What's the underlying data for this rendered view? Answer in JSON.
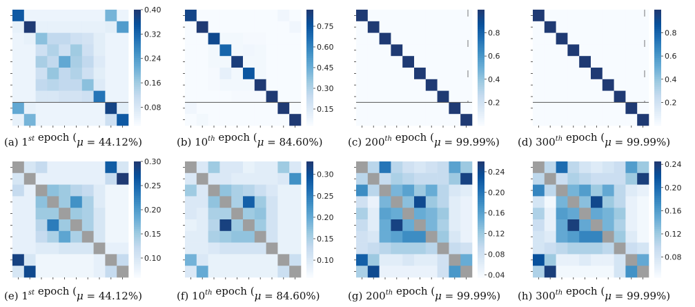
{
  "colors": {
    "low": "#f7fbff",
    "high": "#1f3a73",
    "diagonal_masked": "#9e9e9e",
    "rule": "#555555"
  },
  "panels": [
    {
      "id": "a",
      "caption": {
        "prefix": "(a) ",
        "ord": "1",
        "sup": "st",
        "middle": " epoch (",
        "mu": "μ",
        "value": " = 44.12%)"
      },
      "colorbar": {
        "min": 0.02,
        "max": 0.4,
        "ticks": [
          "0.40",
          "0.32",
          "0.24",
          "0.16",
          "0.08"
        ]
      },
      "diagonal_masked": false,
      "rule_row": 8,
      "matrix": [
        [
          0.34,
          0.04,
          0.04,
          0.04,
          0.04,
          0.04,
          0.04,
          0.04,
          0.2,
          0.04
        ],
        [
          0.05,
          0.4,
          0.05,
          0.05,
          0.05,
          0.05,
          0.05,
          0.05,
          0.06,
          0.24
        ],
        [
          0.04,
          0.05,
          0.18,
          0.12,
          0.12,
          0.1,
          0.09,
          0.06,
          0.04,
          0.04
        ],
        [
          0.04,
          0.04,
          0.1,
          0.14,
          0.1,
          0.16,
          0.1,
          0.06,
          0.04,
          0.04
        ],
        [
          0.04,
          0.04,
          0.15,
          0.12,
          0.22,
          0.15,
          0.12,
          0.07,
          0.04,
          0.04
        ],
        [
          0.04,
          0.04,
          0.1,
          0.17,
          0.12,
          0.14,
          0.1,
          0.06,
          0.04,
          0.04
        ],
        [
          0.04,
          0.04,
          0.12,
          0.13,
          0.12,
          0.12,
          0.18,
          0.07,
          0.04,
          0.04
        ],
        [
          0.04,
          0.04,
          0.08,
          0.08,
          0.09,
          0.09,
          0.1,
          0.3,
          0.04,
          0.04
        ],
        [
          0.22,
          0.05,
          0.04,
          0.04,
          0.04,
          0.04,
          0.04,
          0.04,
          0.38,
          0.06
        ],
        [
          0.05,
          0.2,
          0.04,
          0.04,
          0.04,
          0.04,
          0.04,
          0.04,
          0.1,
          0.34
        ]
      ]
    },
    {
      "id": "b",
      "caption": {
        "prefix": "(b) ",
        "ord": "10",
        "sup": "th",
        "middle": " epoch (",
        "mu": "μ",
        "value": " = 84.60%)"
      },
      "colorbar": {
        "min": 0.03,
        "max": 0.87,
        "ticks": [
          "0.75",
          "0.60",
          "0.45",
          "0.30",
          "0.15"
        ]
      },
      "diagonal_masked": false,
      "rule_row": 8,
      "matrix": [
        [
          0.82,
          0.03,
          0.03,
          0.03,
          0.03,
          0.03,
          0.03,
          0.03,
          0.06,
          0.03
        ],
        [
          0.03,
          0.87,
          0.03,
          0.03,
          0.03,
          0.03,
          0.03,
          0.03,
          0.03,
          0.06
        ],
        [
          0.03,
          0.03,
          0.8,
          0.05,
          0.05,
          0.04,
          0.04,
          0.03,
          0.03,
          0.03
        ],
        [
          0.03,
          0.03,
          0.05,
          0.7,
          0.05,
          0.06,
          0.05,
          0.03,
          0.03,
          0.03
        ],
        [
          0.03,
          0.03,
          0.05,
          0.05,
          0.85,
          0.05,
          0.05,
          0.03,
          0.03,
          0.03
        ],
        [
          0.03,
          0.03,
          0.04,
          0.1,
          0.05,
          0.75,
          0.05,
          0.03,
          0.03,
          0.03
        ],
        [
          0.03,
          0.03,
          0.04,
          0.05,
          0.05,
          0.05,
          0.87,
          0.03,
          0.03,
          0.03
        ],
        [
          0.03,
          0.03,
          0.03,
          0.03,
          0.04,
          0.04,
          0.04,
          0.87,
          0.03,
          0.03
        ],
        [
          0.06,
          0.03,
          0.03,
          0.03,
          0.03,
          0.03,
          0.03,
          0.03,
          0.87,
          0.03
        ],
        [
          0.03,
          0.05,
          0.03,
          0.03,
          0.03,
          0.03,
          0.03,
          0.03,
          0.03,
          0.87
        ]
      ]
    },
    {
      "id": "c",
      "caption": {
        "prefix": "(c) ",
        "ord": "200",
        "sup": "th",
        "middle": " epoch (",
        "mu": "μ",
        "value": " = 99.99%)"
      },
      "colorbar": {
        "min": 0.0,
        "max": 1.0,
        "ticks": [
          "0.8",
          "0.6",
          "0.4",
          "0.2"
        ]
      },
      "diagonal_masked": false,
      "rule_row": 8,
      "matrix": [
        [
          1,
          0,
          0,
          0,
          0,
          0,
          0,
          0,
          0,
          0
        ],
        [
          0,
          1,
          0,
          0,
          0,
          0,
          0,
          0,
          0,
          0
        ],
        [
          0,
          0,
          1,
          0,
          0,
          0,
          0,
          0,
          0,
          0
        ],
        [
          0,
          0,
          0,
          1,
          0,
          0,
          0,
          0,
          0,
          0
        ],
        [
          0,
          0,
          0,
          0,
          1,
          0,
          0,
          0,
          0,
          0
        ],
        [
          0,
          0,
          0,
          0,
          0,
          1,
          0,
          0,
          0,
          0
        ],
        [
          0,
          0,
          0,
          0,
          0,
          0,
          1,
          0,
          0,
          0
        ],
        [
          0,
          0,
          0,
          0,
          0,
          0,
          0,
          1,
          0,
          0
        ],
        [
          0,
          0,
          0,
          0,
          0,
          0,
          0,
          0,
          1,
          0
        ],
        [
          0,
          0,
          0,
          0,
          0,
          0,
          0,
          0,
          0,
          1
        ]
      ]
    },
    {
      "id": "d",
      "caption": {
        "prefix": "(d) ",
        "ord": "300",
        "sup": "th",
        "middle": " epoch (",
        "mu": "μ",
        "value": " = 99.99%)"
      },
      "colorbar": {
        "min": 0.0,
        "max": 1.0,
        "ticks": [
          "0.8",
          "0.6",
          "0.4",
          "0.2"
        ]
      },
      "diagonal_masked": false,
      "rule_row": 8,
      "matrix": [
        [
          1,
          0,
          0,
          0,
          0,
          0,
          0,
          0,
          0,
          0
        ],
        [
          0,
          1,
          0,
          0,
          0,
          0,
          0,
          0,
          0,
          0
        ],
        [
          0,
          0,
          1,
          0,
          0,
          0,
          0,
          0,
          0,
          0
        ],
        [
          0,
          0,
          0,
          1,
          0,
          0,
          0,
          0,
          0,
          0
        ],
        [
          0,
          0,
          0,
          0,
          1,
          0,
          0,
          0,
          0,
          0
        ],
        [
          0,
          0,
          0,
          0,
          0,
          1,
          0,
          0,
          0,
          0
        ],
        [
          0,
          0,
          0,
          0,
          0,
          0,
          1,
          0,
          0,
          0
        ],
        [
          0,
          0,
          0,
          0,
          0,
          0,
          0,
          1,
          0,
          0
        ],
        [
          0,
          0,
          0,
          0,
          0,
          0,
          0,
          0,
          1,
          0
        ],
        [
          0,
          0,
          0,
          0,
          0,
          0,
          0,
          0,
          0,
          1
        ]
      ]
    },
    {
      "id": "e",
      "caption": {
        "prefix": "(e) ",
        "ord": "1",
        "sup": "st",
        "middle": " epoch (",
        "mu": "μ",
        "value": " = 44.12%)"
      },
      "colorbar": {
        "min": 0.06,
        "max": 0.3,
        "ticks": [
          "0.30",
          "0.25",
          "0.20",
          "0.15",
          "0.10"
        ]
      },
      "diagonal_masked": true,
      "rule_row": null,
      "matrix": [
        [
          0,
          0.1,
          0.12,
          0.08,
          0.08,
          0.08,
          0.08,
          0.08,
          0.26,
          0.1
        ],
        [
          0.1,
          0,
          0.08,
          0.08,
          0.08,
          0.08,
          0.08,
          0.08,
          0.12,
          0.3
        ],
        [
          0.12,
          0.08,
          0,
          0.16,
          0.15,
          0.13,
          0.12,
          0.09,
          0.07,
          0.07
        ],
        [
          0.08,
          0.08,
          0.16,
          0,
          0.15,
          0.21,
          0.14,
          0.09,
          0.07,
          0.07
        ],
        [
          0.08,
          0.08,
          0.15,
          0.15,
          0,
          0.15,
          0.14,
          0.1,
          0.07,
          0.07
        ],
        [
          0.08,
          0.08,
          0.13,
          0.23,
          0.15,
          0,
          0.14,
          0.1,
          0.07,
          0.07
        ],
        [
          0.08,
          0.08,
          0.12,
          0.14,
          0.19,
          0.14,
          0,
          0.1,
          0.07,
          0.07
        ],
        [
          0.08,
          0.08,
          0.09,
          0.09,
          0.1,
          0.1,
          0.1,
          0,
          0.08,
          0.08
        ],
        [
          0.29,
          0.1,
          0.07,
          0.07,
          0.07,
          0.07,
          0.07,
          0.08,
          0,
          0.12
        ],
        [
          0.1,
          0.28,
          0.07,
          0.07,
          0.07,
          0.07,
          0.07,
          0.08,
          0.12,
          0
        ]
      ]
    },
    {
      "id": "f",
      "caption": {
        "prefix": "(f) ",
        "ord": "10",
        "sup": "th",
        "middle": " epoch (",
        "mu": "μ",
        "value": " = 84.60%)"
      },
      "colorbar": {
        "min": 0.06,
        "max": 0.33,
        "ticks": [
          "0.30",
          "0.25",
          "0.20",
          "0.15",
          "0.10"
        ]
      },
      "diagonal_masked": true,
      "rule_row": null,
      "matrix": [
        [
          0,
          0.1,
          0.16,
          0.1,
          0.1,
          0.08,
          0.09,
          0.09,
          0.16,
          0.1
        ],
        [
          0.1,
          0,
          0.1,
          0.1,
          0.09,
          0.09,
          0.09,
          0.09,
          0.1,
          0.23
        ],
        [
          0.16,
          0.1,
          0,
          0.17,
          0.15,
          0.14,
          0.12,
          0.1,
          0.08,
          0.08
        ],
        [
          0.1,
          0.1,
          0.17,
          0,
          0.15,
          0.28,
          0.16,
          0.11,
          0.08,
          0.08
        ],
        [
          0.1,
          0.09,
          0.15,
          0.15,
          0,
          0.16,
          0.17,
          0.11,
          0.08,
          0.08
        ],
        [
          0.08,
          0.09,
          0.14,
          0.32,
          0.16,
          0,
          0.16,
          0.11,
          0.08,
          0.08
        ],
        [
          0.09,
          0.09,
          0.15,
          0.16,
          0.17,
          0.17,
          0,
          0.11,
          0.08,
          0.08
        ],
        [
          0.09,
          0.09,
          0.1,
          0.11,
          0.11,
          0.11,
          0.11,
          0,
          0.08,
          0.08
        ],
        [
          0.19,
          0.1,
          0.08,
          0.08,
          0.08,
          0.08,
          0.08,
          0.08,
          0,
          0.12
        ],
        [
          0.1,
          0.2,
          0.08,
          0.08,
          0.08,
          0.08,
          0.08,
          0.08,
          0.12,
          0
        ]
      ]
    },
    {
      "id": "g",
      "caption": {
        "prefix": "(g) ",
        "ord": "200",
        "sup": "th",
        "middle": " epoch (",
        "mu": "μ",
        "value": " = 99.99%)"
      },
      "colorbar": {
        "min": 0.035,
        "max": 0.26,
        "ticks": [
          "0.24",
          "0.20",
          "0.16",
          "0.12",
          "0.08",
          "0.04"
        ]
      },
      "diagonal_masked": true,
      "rule_row": null,
      "matrix": [
        [
          0,
          0.1,
          0.2,
          0.1,
          0.08,
          0.07,
          0.08,
          0.09,
          0.16,
          0.12
        ],
        [
          0.1,
          0,
          0.09,
          0.11,
          0.1,
          0.09,
          0.09,
          0.09,
          0.12,
          0.25
        ],
        [
          0.18,
          0.1,
          0,
          0.14,
          0.16,
          0.12,
          0.15,
          0.1,
          0.07,
          0.06
        ],
        [
          0.08,
          0.05,
          0.14,
          0,
          0.13,
          0.24,
          0.12,
          0.1,
          0.06,
          0.05
        ],
        [
          0.11,
          0.06,
          0.16,
          0.15,
          0,
          0.15,
          0.14,
          0.12,
          0.06,
          0.05
        ],
        [
          0.09,
          0.06,
          0.15,
          0.25,
          0.15,
          0,
          0.14,
          0.11,
          0.06,
          0.05
        ],
        [
          0.08,
          0.07,
          0.15,
          0.16,
          0.18,
          0.18,
          0,
          0.12,
          0.07,
          0.05
        ],
        [
          0.08,
          0.09,
          0.1,
          0.11,
          0.11,
          0.11,
          0.1,
          0,
          0.09,
          0.08
        ],
        [
          0.22,
          0.12,
          0.06,
          0.06,
          0.07,
          0.06,
          0.06,
          0.08,
          0,
          0.15
        ],
        [
          0.11,
          0.24,
          0.05,
          0.05,
          0.05,
          0.05,
          0.05,
          0.08,
          0.17,
          0
        ]
      ]
    },
    {
      "id": "h",
      "caption": {
        "prefix": "(h) ",
        "ord": "300",
        "sup": "th",
        "middle": " epoch (",
        "mu": "μ",
        "value": " = 99.99%)"
      },
      "colorbar": {
        "min": 0.045,
        "max": 0.245,
        "ticks": [
          "0.24",
          "0.20",
          "0.16",
          "0.12",
          "0.08"
        ]
      },
      "diagonal_masked": true,
      "rule_row": null,
      "matrix": [
        [
          0,
          0.1,
          0.2,
          0.1,
          0.08,
          0.07,
          0.08,
          0.09,
          0.16,
          0.12
        ],
        [
          0.1,
          0,
          0.09,
          0.11,
          0.1,
          0.09,
          0.09,
          0.09,
          0.12,
          0.24
        ],
        [
          0.18,
          0.1,
          0,
          0.14,
          0.16,
          0.12,
          0.15,
          0.1,
          0.07,
          0.06
        ],
        [
          0.08,
          0.05,
          0.14,
          0,
          0.13,
          0.23,
          0.12,
          0.1,
          0.06,
          0.05
        ],
        [
          0.11,
          0.06,
          0.16,
          0.15,
          0,
          0.15,
          0.14,
          0.12,
          0.06,
          0.05
        ],
        [
          0.09,
          0.06,
          0.15,
          0.24,
          0.15,
          0,
          0.14,
          0.11,
          0.06,
          0.05
        ],
        [
          0.08,
          0.07,
          0.15,
          0.16,
          0.18,
          0.18,
          0,
          0.12,
          0.07,
          0.05
        ],
        [
          0.08,
          0.09,
          0.1,
          0.11,
          0.11,
          0.11,
          0.1,
          0,
          0.09,
          0.08
        ],
        [
          0.22,
          0.12,
          0.06,
          0.06,
          0.07,
          0.06,
          0.06,
          0.08,
          0,
          0.15
        ],
        [
          0.11,
          0.24,
          0.05,
          0.05,
          0.05,
          0.05,
          0.05,
          0.08,
          0.17,
          0
        ]
      ]
    }
  ],
  "chart_data": [
    {
      "type": "heatmap",
      "panel": "a",
      "caption": "(a) 1st epoch (μ = 44.12%)",
      "zlim": [
        0.02,
        0.4
      ],
      "diagonal": "shown"
    },
    {
      "type": "heatmap",
      "panel": "b",
      "caption": "(b) 10th epoch (μ = 84.60%)",
      "zlim": [
        0.03,
        0.87
      ],
      "diagonal": "shown"
    },
    {
      "type": "heatmap",
      "panel": "c",
      "caption": "(c) 200th epoch (μ = 99.99%)",
      "zlim": [
        0.0,
        1.0
      ],
      "diagonal": "shown"
    },
    {
      "type": "heatmap",
      "panel": "d",
      "caption": "(d) 300th epoch (μ = 99.99%)",
      "zlim": [
        0.0,
        1.0
      ],
      "diagonal": "shown"
    },
    {
      "type": "heatmap",
      "panel": "e",
      "caption": "(e) 1st epoch (μ = 44.12%)",
      "zlim": [
        0.06,
        0.3
      ],
      "diagonal": "masked"
    },
    {
      "type": "heatmap",
      "panel": "f",
      "caption": "(f) 10th epoch (μ = 84.60%)",
      "zlim": [
        0.06,
        0.33
      ],
      "diagonal": "masked"
    },
    {
      "type": "heatmap",
      "panel": "g",
      "caption": "(g) 200th epoch (μ = 99.99%)",
      "zlim": [
        0.035,
        0.26
      ],
      "diagonal": "masked"
    },
    {
      "type": "heatmap",
      "panel": "h",
      "caption": "(h) 300th epoch (μ = 99.99%)",
      "zlim": [
        0.045,
        0.245
      ],
      "diagonal": "masked"
    }
  ]
}
